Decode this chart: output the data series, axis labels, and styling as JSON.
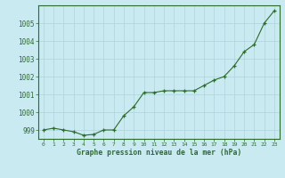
{
  "x": [
    0,
    1,
    2,
    3,
    4,
    5,
    6,
    7,
    8,
    9,
    10,
    11,
    12,
    13,
    14,
    15,
    16,
    17,
    18,
    19,
    20,
    21,
    22,
    23
  ],
  "y": [
    999.0,
    999.1,
    999.0,
    998.9,
    998.7,
    998.75,
    999.0,
    999.0,
    999.8,
    1000.3,
    1001.1,
    1001.1,
    1001.2,
    1001.2,
    1001.2,
    1001.2,
    1001.5,
    1001.8,
    1002.0,
    1002.6,
    1003.4,
    1003.8,
    1005.0,
    1005.7
  ],
  "line_color": "#2d6a2d",
  "marker_color": "#2d6a2d",
  "bg_color": "#c8eaf0",
  "grid_color": "#b0d4dc",
  "xlabel": "Graphe pression niveau de la mer (hPa)",
  "xlabel_color": "#2d6a2d",
  "tick_color": "#2d6a2d",
  "ylim": [
    998.5,
    1006.0
  ],
  "yticks": [
    999,
    1000,
    1001,
    1002,
    1003,
    1004,
    1005
  ],
  "xticks": [
    0,
    1,
    2,
    3,
    4,
    5,
    6,
    7,
    8,
    9,
    10,
    11,
    12,
    13,
    14,
    15,
    16,
    17,
    18,
    19,
    20,
    21,
    22,
    23
  ]
}
